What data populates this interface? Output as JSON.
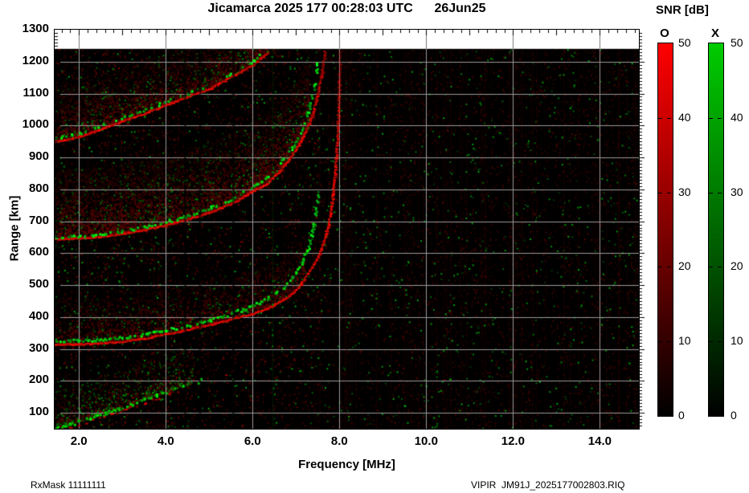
{
  "header": {
    "title": "Jicamarca 2025 177 00:28:03 UTC      26Jun25"
  },
  "colorbar_panel": {
    "title": "SNR [dB]",
    "o_label": "O",
    "x_label": "X",
    "o_color": "#ff0000",
    "x_color": "#00cc00",
    "tick_values": [
      50,
      40,
      30,
      20,
      10,
      0
    ],
    "tick_labels": [
      "50",
      "40",
      "30",
      "20",
      "10",
      "0"
    ]
  },
  "axes": {
    "x_label": "Frequency [MHz]",
    "y_label": "Range [km]",
    "x_tick_values": [
      2,
      4,
      6,
      8,
      10,
      12,
      14
    ],
    "x_tick_labels": [
      "2.0",
      "4.0",
      "6.0",
      "8.0",
      "10.0",
      "12.0",
      "14.0"
    ],
    "y_tick_values": [
      1300,
      1200,
      1100,
      1000,
      900,
      800,
      700,
      600,
      500,
      400,
      300,
      200,
      100
    ],
    "y_tick_labels": [
      "1300",
      "1200",
      "1100",
      "1000",
      "900",
      "800",
      "700",
      "600",
      "500",
      "400",
      "300",
      "200",
      "100"
    ]
  },
  "footer": {
    "left": "RxMask 11111111",
    "right": "VIPIR  JM91J_2025177002803.RIQ"
  },
  "chart_data": {
    "type": "heatmap",
    "title": "Jicamarca 2025 177 00:28:03 UTC 26Jun25",
    "xlabel": "Frequency [MHz]",
    "ylabel": "Range [km]",
    "xlim": [
      1.44,
      14.9
    ],
    "ylim": [
      50,
      1300
    ],
    "grid": true,
    "grid_color": "#9a9a9a",
    "background": "#000000",
    "data_max_range_km": 1240,
    "snr_scale_db": [
      0,
      50
    ],
    "modes": {
      "O": "#ff0000",
      "X": "#00cc00"
    },
    "foF2_mhz": 7.95,
    "traces": [
      {
        "name": "F-region 1st hop O-mode",
        "mode": "O",
        "style": "line",
        "fade_above_km": 900,
        "points": [
          [
            1.44,
            316
          ],
          [
            2,
            316
          ],
          [
            2.5,
            319
          ],
          [
            3,
            325
          ],
          [
            3.5,
            335
          ],
          [
            4,
            348
          ],
          [
            4.5,
            362
          ],
          [
            5,
            378
          ],
          [
            5.5,
            395
          ],
          [
            6,
            413
          ],
          [
            6.3,
            428
          ],
          [
            6.6,
            447
          ],
          [
            6.9,
            475
          ],
          [
            7.1,
            505
          ],
          [
            7.3,
            545
          ],
          [
            7.5,
            592
          ],
          [
            7.65,
            650
          ],
          [
            7.78,
            725
          ],
          [
            7.87,
            830
          ],
          [
            7.93,
            950
          ],
          [
            7.96,
            1060
          ],
          [
            7.99,
            1240
          ]
        ]
      },
      {
        "name": "F-region 1st hop X-mode",
        "mode": "X",
        "prob": 0.78,
        "points": [
          [
            1.44,
            329
          ],
          [
            2,
            329
          ],
          [
            2.5,
            332
          ],
          [
            3,
            338
          ],
          [
            3.5,
            349
          ],
          [
            4,
            362
          ],
          [
            4.5,
            376
          ],
          [
            5,
            393
          ],
          [
            5.4,
            409
          ],
          [
            5.8,
            428
          ],
          [
            6.1,
            445
          ],
          [
            6.4,
            466
          ],
          [
            6.7,
            497
          ],
          [
            6.9,
            527
          ],
          [
            7.1,
            566
          ],
          [
            7.25,
            615
          ],
          [
            7.37,
            672
          ],
          [
            7.45,
            735
          ],
          [
            7.5,
            790
          ]
        ]
      },
      {
        "name": "F-region 2nd hop O-mode",
        "mode": "O",
        "style": "line",
        "fade_above_km": 1000,
        "points": [
          [
            1.44,
            645
          ],
          [
            2,
            648
          ],
          [
            2.5,
            654
          ],
          [
            3,
            663
          ],
          [
            3.5,
            675
          ],
          [
            4,
            690
          ],
          [
            4.5,
            708
          ],
          [
            5,
            730
          ],
          [
            5.5,
            757
          ],
          [
            6,
            797
          ],
          [
            6.3,
            818
          ],
          [
            6.6,
            858
          ],
          [
            6.9,
            910
          ],
          [
            7.1,
            952
          ],
          [
            7.3,
            1010
          ],
          [
            7.45,
            1080
          ],
          [
            7.57,
            1160
          ],
          [
            7.65,
            1240
          ]
        ]
      },
      {
        "name": "F-region 2nd hop X-mode",
        "mode": "X",
        "prob": 0.6,
        "points": [
          [
            1.44,
            652
          ],
          [
            2,
            656
          ],
          [
            2.5,
            662
          ],
          [
            3,
            672
          ],
          [
            3.5,
            684
          ],
          [
            4,
            700
          ],
          [
            4.5,
            720
          ],
          [
            5,
            744
          ],
          [
            5.5,
            772
          ],
          [
            6,
            812
          ],
          [
            6.3,
            838
          ],
          [
            6.6,
            880
          ],
          [
            6.9,
            932
          ],
          [
            7.1,
            978
          ],
          [
            7.25,
            1035
          ],
          [
            7.38,
            1110
          ],
          [
            7.48,
            1200
          ]
        ]
      },
      {
        "name": "F-region 3rd hop O-mode",
        "mode": "O",
        "style": "line",
        "fade_above_km": 1150,
        "points": [
          [
            1.44,
            950
          ],
          [
            2,
            966
          ],
          [
            2.5,
            990
          ],
          [
            3,
            1016
          ],
          [
            3.5,
            1040
          ],
          [
            4,
            1066
          ],
          [
            4.5,
            1092
          ],
          [
            5,
            1117
          ],
          [
            5.5,
            1155
          ],
          [
            6,
            1192
          ],
          [
            6.35,
            1232
          ]
        ]
      },
      {
        "name": "F-region 3rd hop X-mode",
        "mode": "X",
        "prob": 0.4,
        "points": [
          [
            1.44,
            962
          ],
          [
            2,
            978
          ],
          [
            2.5,
            1002
          ],
          [
            3,
            1028
          ],
          [
            3.5,
            1052
          ],
          [
            4,
            1078
          ],
          [
            4.5,
            1104
          ],
          [
            5,
            1130
          ],
          [
            5.5,
            1168
          ],
          [
            6,
            1205
          ],
          [
            6.25,
            1235
          ]
        ]
      },
      {
        "name": "low-range echo",
        "mode": "mixed",
        "fade_after_mhz": 3.4,
        "points": [
          [
            1.44,
            52
          ],
          [
            2,
            75
          ],
          [
            2.6,
            102
          ],
          [
            3.2,
            130
          ],
          [
            3.8,
            158
          ],
          [
            4.4,
            186
          ],
          [
            5.0,
            214
          ],
          [
            5.6,
            242
          ]
        ]
      }
    ],
    "diffuse_regions": [
      {
        "name": "spread above 1st hop",
        "trace": 0,
        "f_range": [
          1.44,
          7.2
        ],
        "extent_km": 140,
        "count": 2200,
        "green_prob": 0.1
      },
      {
        "name": "spread above 2nd hop",
        "trace": 2,
        "f_range": [
          1.44,
          7.3
        ],
        "extent_km": 220,
        "count": 5200,
        "green_prob": 0.13
      },
      {
        "name": "spread above 3rd hop",
        "trace": 4,
        "f_range": [
          1.44,
          6.4
        ],
        "extent_km": 160,
        "count": 2600,
        "green_prob": 0.12
      },
      {
        "name": "spread above low echo",
        "trace": 6,
        "f_range": [
          1.44,
          4.6
        ],
        "extent_km": 120,
        "count": 900,
        "green_prob": 0.35
      }
    ],
    "rfi": {
      "dark_columns_mhz": [
        4.44,
        4.78,
        5.55
      ],
      "green_columns_mhz": [
        6.45
      ],
      "red_column_band_mhz": [
        2.0,
        14.85
      ]
    },
    "noise": {
      "red_dots": 9000,
      "green_dots": 1400,
      "seed": 7
    }
  }
}
